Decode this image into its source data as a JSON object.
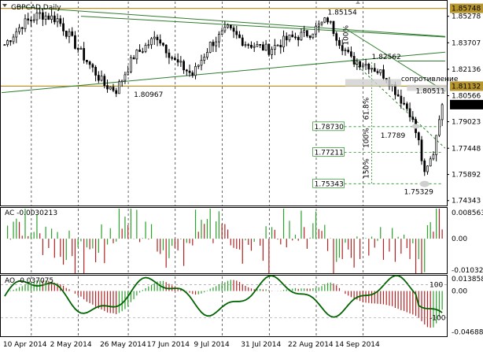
{
  "header": {
    "symbol_label": "GBPCAD,Daily",
    "ac_label": "AC -0.0030213",
    "ao_label": "AO -0.037075"
  },
  "colors": {
    "up": "#2ca02c",
    "down": "#b22222",
    "candle": "#000000",
    "line_green": "#2e7d2e",
    "level_gold": "#b8962e",
    "fib_green": "#228b22",
    "ao_line": "#006400",
    "price_tag_bg": "#000000",
    "level_tag_bg": "#8b7d3a"
  },
  "chart_data": [
    {
      "type": "candlestick",
      "title": "GBPCAD,Daily",
      "x_ticks": [
        "10 Apr 2014",
        "2 May 2014",
        "26 May 2014",
        "17 Jun 2014",
        "9 Jul 2014",
        "31 Jul 2014",
        "22 Aug 2014",
        "14 Sep 2014"
      ],
      "y_ticks": [
        1.85278,
        1.83707,
        1.82136,
        1.80566,
        1.79023,
        1.77448,
        1.75892,
        1.74343
      ],
      "ylim": [
        1.7405,
        1.8615
      ],
      "current_price": 1.80036,
      "levels": [
        {
          "label": "1.85748",
          "value": 1.85748
        },
        {
          "label": "1.81132",
          "value": 1.81132
        }
      ],
      "annotations": [
        {
          "text": "1.85154",
          "value": 1.85154
        },
        {
          "text": "1.82562",
          "value": 1.82562
        },
        {
          "text": "1.80967",
          "value": 1.80967
        },
        {
          "text": "1.80511",
          "value": 1.80511
        },
        {
          "text": "1.7789",
          "value": 1.7789
        },
        {
          "text": "1.75329",
          "value": 1.75329
        },
        {
          "text": "сопротивление",
          "value": 1.8128
        }
      ],
      "fib": [
        {
          "pct": "61.8%",
          "label": "1.78730",
          "value": 1.7873
        },
        {
          "pct": "100%",
          "label": "1.77211",
          "value": 1.77211
        },
        {
          "pct": "150%",
          "label": "1.75343",
          "value": 1.75343
        }
      ],
      "fib_top_pct": "100%"
    },
    {
      "type": "bar",
      "name": "AC",
      "title": "AC -0.0030213",
      "y_ticks": [
        0.008563,
        0.0,
        -0.010322
      ],
      "y_tick_labels": [
        "0.008563",
        "0.00",
        "-0.010322"
      ],
      "ylim": [
        -0.0113,
        0.0098
      ]
    },
    {
      "type": "bar+line",
      "name": "AO",
      "title": "AO -0.037075",
      "y_ticks": [
        0.013858,
        0.0,
        -0.04688
      ],
      "y_tick_labels": [
        "0.013858",
        "0.00",
        "-0.046880"
      ],
      "osc_ticks": [
        "100",
        "-100"
      ],
      "ylim": [
        -0.052,
        0.0168
      ]
    }
  ]
}
